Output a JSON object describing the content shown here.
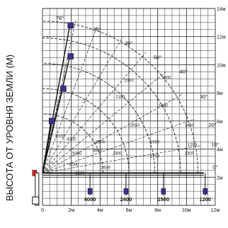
{
  "chart_data": {
    "type": "line",
    "ylabel": "ВЫСОТА ОТ УРОВНЯ ЗЕМЛИ (М)",
    "x_ticks": [
      "0",
      "2м",
      "4м",
      "6м",
      "8м",
      "10м",
      "12м"
    ],
    "y_ticks": [
      "2м",
      "4м",
      "6м",
      "8м",
      "10м",
      "12м",
      "14м"
    ],
    "xlim": [
      0,
      12
    ],
    "ylim": [
      0,
      14
    ],
    "grid": true,
    "angle_labels": [
      {
        "text": "78°",
        "x": 1.2,
        "y": 13.2
      },
      {
        "text": "70°",
        "x": 3.8,
        "y": 12.4
      },
      {
        "text": "30°",
        "x": 6.0,
        "y": 11.4
      },
      {
        "text": "50°",
        "x": 8.0,
        "y": 10.4
      },
      {
        "text": "40°",
        "x": 9.8,
        "y": 9.4
      },
      {
        "text": "30°",
        "x": 11.2,
        "y": 7.6
      },
      {
        "text": "20°",
        "x": 11.8,
        "y": 5.6
      },
      {
        "text": "10°",
        "x": 12.0,
        "y": 4.2
      },
      {
        "text": "0°",
        "x": 12.0,
        "y": 2.6
      }
    ],
    "boom_load_labels": [
      {
        "text": "4000",
        "x": 3.3
      },
      {
        "text": "2400",
        "x": 5.8
      },
      {
        "text": "1500",
        "x": 8.4
      },
      {
        "text": "1200",
        "x": 11.3
      }
    ],
    "curve_labels": [
      {
        "text": "1200",
        "x": 10.4,
        "y": 4.2
      },
      {
        "text": "1400",
        "x": 10.2,
        "y": 5.6
      },
      {
        "text": "1300",
        "x": 10.2,
        "y": 3.6
      },
      {
        "text": "1700",
        "x": 7.8,
        "y": 3.4
      },
      {
        "text": "1900",
        "x": 7.8,
        "y": 4.4
      },
      {
        "text": "1600",
        "x": 8.4,
        "y": 7.0
      },
      {
        "text": "1800",
        "x": 8.6,
        "y": 9.0
      },
      {
        "text": "2000",
        "x": 6.0,
        "y": 8.8
      },
      {
        "text": "2050",
        "x": 6.4,
        "y": 5.6
      },
      {
        "text": "2100",
        "x": 5.4,
        "y": 7.6
      },
      {
        "text": "2600",
        "x": 4.4,
        "y": 2.6
      },
      {
        "text": "2800",
        "x": 5.2,
        "y": 3.6
      },
      {
        "text": "3000",
        "x": 3.8,
        "y": 3.8
      },
      {
        "text": "3500",
        "x": 4.0,
        "y": 4.4
      },
      {
        "text": "4000",
        "x": 2.0,
        "y": 4.6
      },
      {
        "text": "5000",
        "x": 2.4,
        "y": 3.6
      },
      {
        "text": "6000",
        "x": 2.2,
        "y": 2.8
      },
      {
        "text": "1500",
        "x": 2.6,
        "y": 2.2
      },
      {
        "text": "1000",
        "x": 1.2,
        "y": 4.8
      }
    ]
  }
}
